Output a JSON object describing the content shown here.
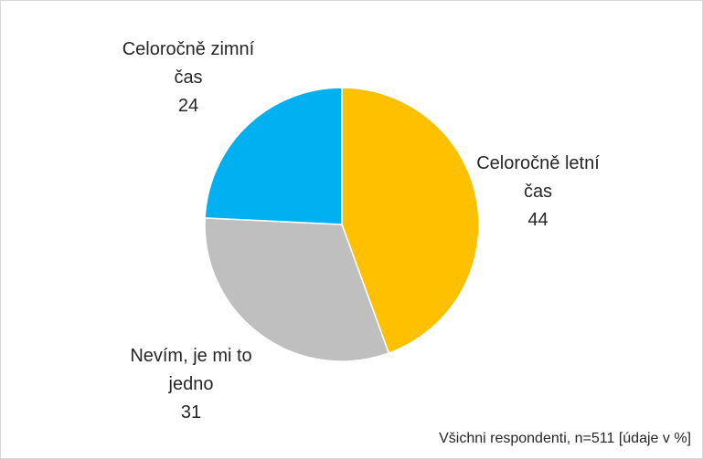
{
  "chart_data": {
    "type": "pie",
    "categories": [
      "Celoročně letní čas",
      "Nevím, je mi to jedno",
      "Celoročně zimní čas"
    ],
    "values": [
      44,
      31,
      24
    ],
    "colors": [
      "#FFC000",
      "#BFBFBF",
      "#00B0F0"
    ],
    "note": "Všichni respondenti, n=511 [údaje v %]"
  }
}
